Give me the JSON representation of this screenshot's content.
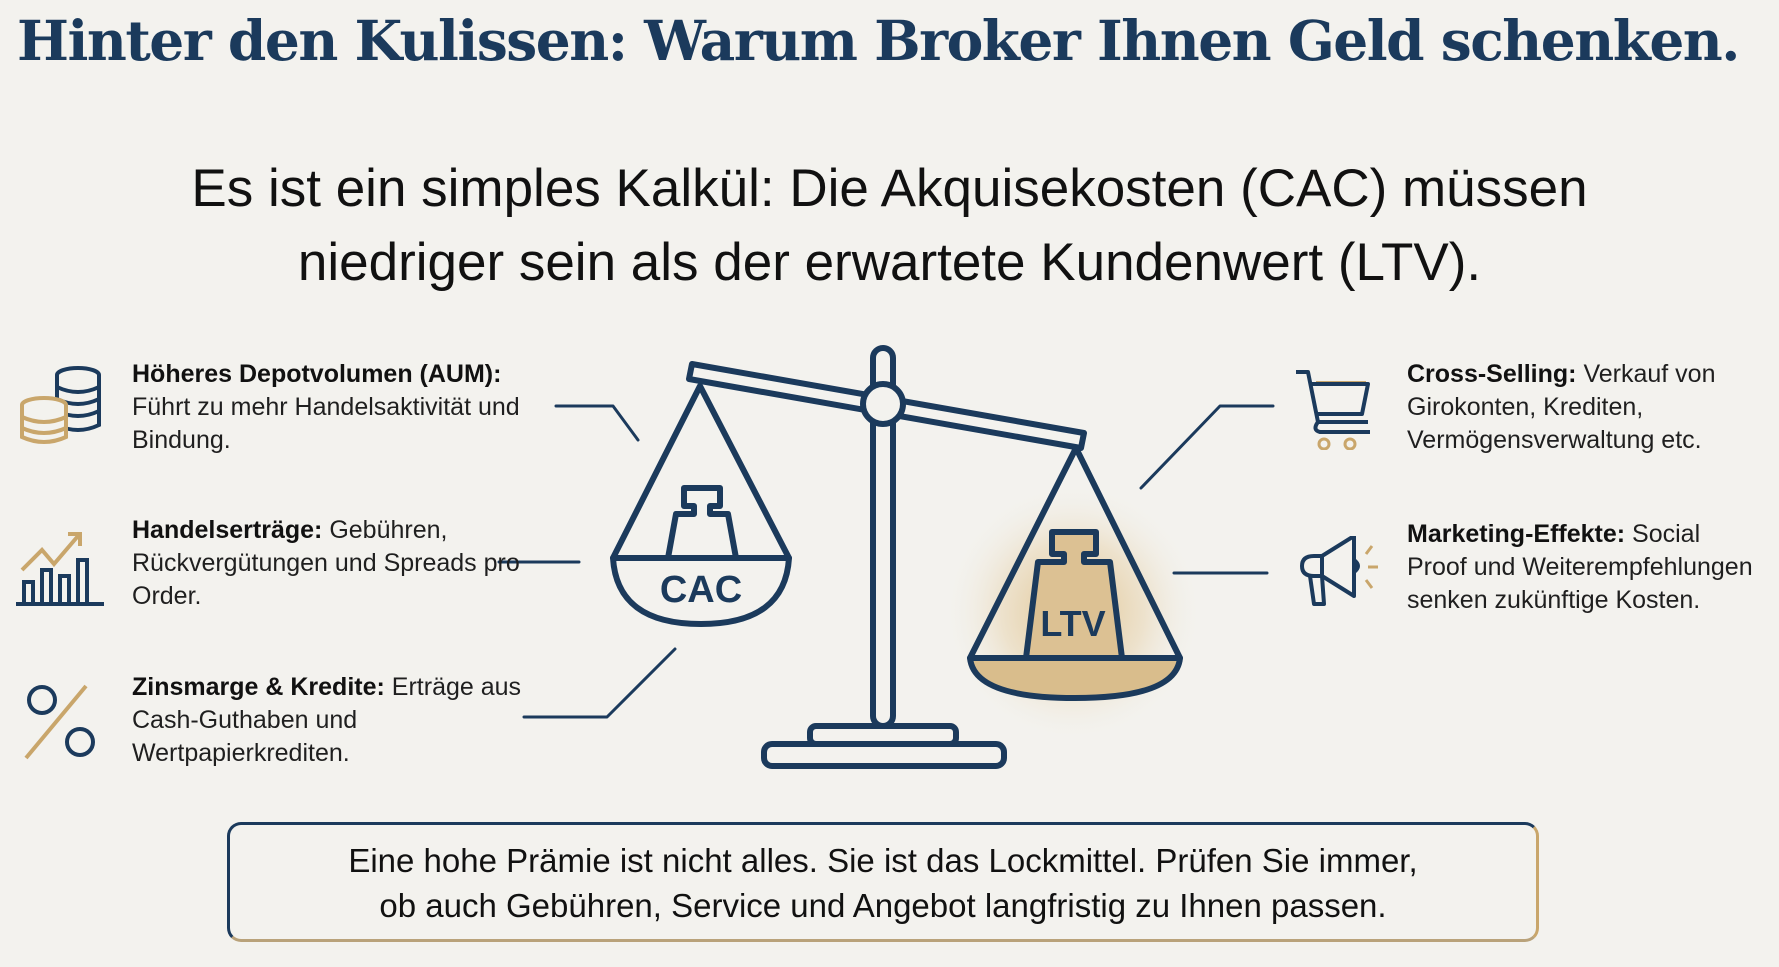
{
  "title": "Hinter den Kulissen: Warum Broker Ihnen Geld schenken.",
  "subtitle": {
    "line1": "Es ist ein simples Kalkül: Die Akquisekosten (CAC) müssen",
    "line2": "niedriger sein als der erwartete Kundenwert (LTV)."
  },
  "left_items": [
    {
      "icon": "coins-stack-icon",
      "heading": "Höheres Depotvolumen (AUM):",
      "text": "Führt zu mehr Handelsaktivität und Bindung."
    },
    {
      "icon": "bar-chart-trend-icon",
      "heading": "Handelserträge:",
      "text": "Gebühren, Rückvergütungen und Spreads pro Order."
    },
    {
      "icon": "percent-icon",
      "heading": "Zinsmarge & Kredite:",
      "text": "Erträge aus Cash-Guthaben und Wertpapierkrediten."
    }
  ],
  "right_items": [
    {
      "icon": "shopping-cart-icon",
      "heading": "Cross-Selling:",
      "text": "Verkauf von Girokonten, Krediten, Vermögensverwaltung etc."
    },
    {
      "icon": "megaphone-icon",
      "heading": "Marketing-Effekte:",
      "text": "Social Proof und Weiterempfehlungen senken zukünftige Kosten."
    }
  ],
  "scale": {
    "left_label": "CAC",
    "right_label": "LTV"
  },
  "note": {
    "line1": "Eine hohe Prämie ist nicht alles. Sie ist das Lockmittel. Prüfen Sie immer,",
    "line2": "ob auch Gebühren, Service und Angebot langfristig zu Ihnen passen."
  },
  "colors": {
    "navy": "#1b3a5c",
    "gold": "#c9a66b",
    "background": "#f3f2ee"
  }
}
